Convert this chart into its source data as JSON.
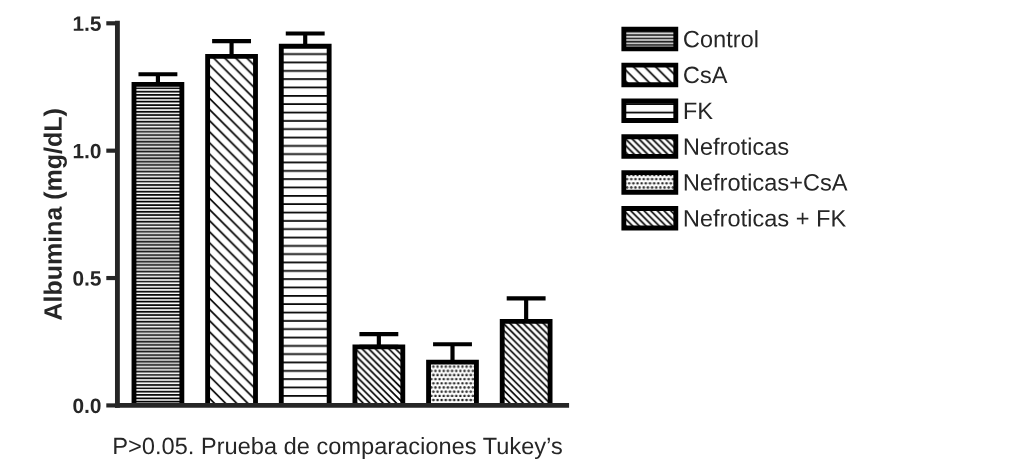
{
  "chart_data": {
    "type": "bar",
    "ylabel": "Albumina (mg/dL)",
    "categories": [
      null,
      null,
      null,
      null,
      null,
      null
    ],
    "series": [
      {
        "name": "Control",
        "values": [
          1.26,
          null,
          null,
          null,
          null,
          null
        ],
        "errors": [
          0.04,
          null,
          null,
          null,
          null,
          null
        ]
      },
      {
        "name": "CsA",
        "values": [
          null,
          1.37,
          null,
          null,
          null,
          null
        ],
        "errors": [
          null,
          0.06,
          null,
          null,
          null,
          null
        ]
      },
      {
        "name": "FK",
        "values": [
          null,
          null,
          1.41,
          null,
          null,
          null
        ],
        "errors": [
          null,
          null,
          0.05,
          null,
          null,
          null
        ]
      },
      {
        "name": "Nefroticas",
        "values": [
          null,
          null,
          null,
          0.23,
          null,
          null
        ],
        "errors": [
          null,
          null,
          null,
          0.05,
          null,
          null
        ]
      },
      {
        "name": "Nefroticas+CsA",
        "values": [
          null,
          null,
          null,
          null,
          0.17,
          null
        ],
        "errors": [
          null,
          null,
          null,
          null,
          0.07,
          null
        ]
      },
      {
        "name": "Nefroticas + FK",
        "values": [
          null,
          null,
          null,
          null,
          null,
          0.33
        ],
        "errors": [
          null,
          null,
          null,
          null,
          null,
          0.09
        ]
      }
    ],
    "ylim": [
      0,
      1.5
    ],
    "yticks": [
      {
        "value": 0,
        "label": "0.0"
      },
      {
        "value": 0.5,
        "label": "0.5"
      },
      {
        "value": 1,
        "label": "1.0"
      },
      {
        "value": 1.5,
        "label": "1.5"
      }
    ],
    "tick_labels": "y",
    "grid": false,
    "legend": "right",
    "annotations": [
      "P>0.05. Prueba de comparaciones Tukey’s"
    ]
  }
}
